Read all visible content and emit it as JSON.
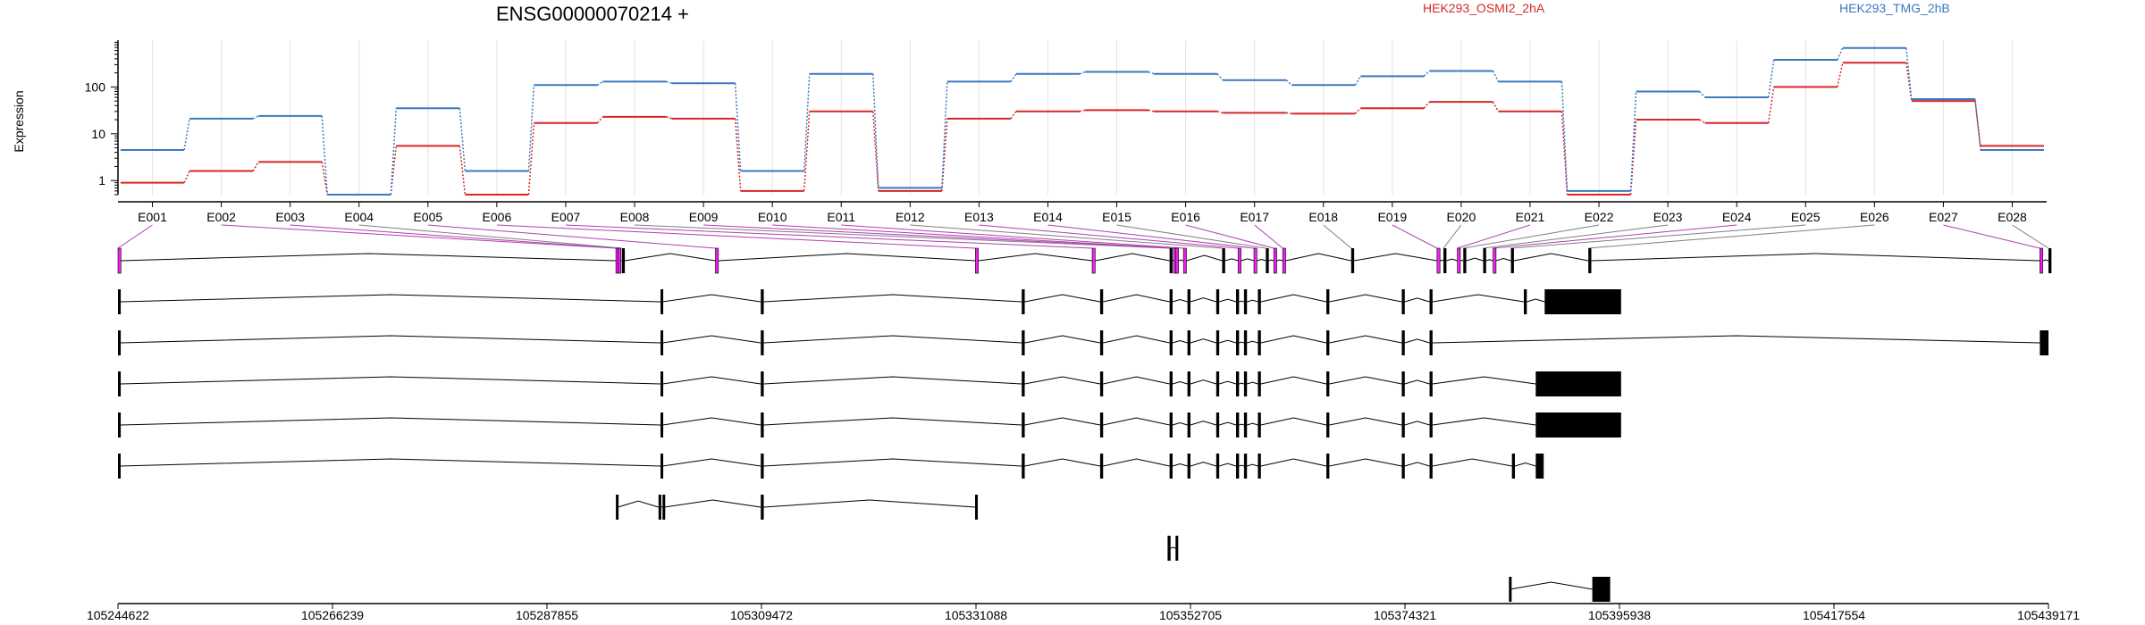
{
  "title": "ENSG00000070214 +",
  "legend": [
    {
      "name": "HEK293_OSMI2_2hA",
      "color": "#d62728"
    },
    {
      "name": "HEK293_TMG_2hB",
      "color": "#3a78c1"
    }
  ],
  "colors": {
    "highlight_exon": "#ee22ee",
    "connector": "#b040b0",
    "connector_plain": "#808080",
    "grid": "#e4e4e4"
  },
  "chart_data": {
    "type": "line",
    "title": "ENSG00000070214 +",
    "xlabel": "",
    "ylabel": "Expression",
    "yscale": "log",
    "ylim": [
      0.5,
      1000
    ],
    "yticks": [
      1,
      10,
      100
    ],
    "ytick_labels": [
      "1",
      "10",
      "100"
    ],
    "grid": true,
    "legend_position": "top-right",
    "categories": [
      "E001",
      "E002",
      "E003",
      "E004",
      "E005",
      "E006",
      "E007",
      "E008",
      "E009",
      "E010",
      "E011",
      "E012",
      "E013",
      "E014",
      "E015",
      "E016",
      "E017",
      "E018",
      "E019",
      "E020",
      "E021",
      "E022",
      "E023",
      "E024",
      "E025",
      "E026",
      "E027",
      "E028"
    ],
    "series": [
      {
        "name": "HEK293_OSMI2_2hA",
        "color": "#d62728",
        "values": [
          0.9,
          1.6,
          2.5,
          0.5,
          5.5,
          0.5,
          17,
          23,
          21,
          0.6,
          30,
          0.6,
          21,
          30,
          32,
          30,
          28,
          27,
          35,
          48,
          30,
          0.5,
          20,
          17,
          100,
          330,
          50,
          5.5
        ]
      },
      {
        "name": "HEK293_TMG_2hB",
        "color": "#3a78c1",
        "values": [
          4.5,
          21,
          24,
          0.5,
          35,
          1.6,
          110,
          130,
          120,
          1.6,
          190,
          0.7,
          130,
          190,
          210,
          190,
          140,
          110,
          170,
          220,
          130,
          0.6,
          80,
          60,
          380,
          680,
          55,
          4.5
        ]
      }
    ]
  },
  "genome": {
    "coord_ticks": [
      "105244622",
      "105266239",
      "105287855",
      "105309472",
      "105331088",
      "105352705",
      "105374321",
      "105395938",
      "105417554",
      "105439171"
    ],
    "coord_range": [
      105244622,
      105439171
    ],
    "exon_positions": [
      105244622,
      105294800,
      105295000,
      105295400,
      105304830,
      105331030,
      105342800,
      105350600,
      105351000,
      105351200,
      105352000,
      105355900,
      105357500,
      105359100,
      105360300,
      105361100,
      105362000,
      105368900,
      105377550,
      105378200,
      105379600,
      105380200,
      105382200,
      105383200,
      105385000,
      105392800,
      105438300,
      105439171
    ],
    "highlight_exons": [
      0,
      1,
      2,
      4,
      5,
      6,
      8,
      9,
      10,
      12,
      13,
      15,
      16,
      18,
      20,
      23,
      26
    ],
    "transcripts": [
      {
        "exons": [
          [
            105244622,
            105244900
          ],
          [
            105299300,
            105299500
          ],
          [
            105309400,
            105309700
          ],
          [
            105335700,
            105336000
          ],
          [
            105343600,
            105343900
          ],
          [
            105350600,
            105350900
          ],
          [
            105352400,
            105352700
          ],
          [
            105355300,
            105355600
          ],
          [
            105357300,
            105357600
          ],
          [
            105358100,
            105358400
          ],
          [
            105359500,
            105359800
          ],
          [
            105366400,
            105366700
          ],
          [
            105374000,
            105374300
          ],
          [
            105376800,
            105377100
          ],
          [
            105386300,
            105386600
          ],
          [
            105388400,
            105396100
          ]
        ]
      },
      {
        "exons": [
          [
            105244622,
            105244900
          ],
          [
            105299300,
            105299500
          ],
          [
            105309400,
            105309700
          ],
          [
            105335700,
            105336000
          ],
          [
            105343600,
            105343900
          ],
          [
            105350600,
            105350900
          ],
          [
            105352400,
            105352700
          ],
          [
            105355300,
            105355600
          ],
          [
            105357300,
            105357600
          ],
          [
            105358100,
            105358400
          ],
          [
            105359500,
            105359800
          ],
          [
            105366400,
            105366700
          ],
          [
            105374000,
            105374300
          ],
          [
            105376800,
            105377100
          ],
          [
            105438300,
            105439171
          ]
        ]
      },
      {
        "exons": [
          [
            105244622,
            105244900
          ],
          [
            105299300,
            105299500
          ],
          [
            105309400,
            105309700
          ],
          [
            105335700,
            105336000
          ],
          [
            105343600,
            105343900
          ],
          [
            105350600,
            105350900
          ],
          [
            105352400,
            105352700
          ],
          [
            105355300,
            105355600
          ],
          [
            105357300,
            105357600
          ],
          [
            105358100,
            105358400
          ],
          [
            105359500,
            105359800
          ],
          [
            105366400,
            105366700
          ],
          [
            105374000,
            105374300
          ],
          [
            105376800,
            105377100
          ],
          [
            105387500,
            105396100
          ]
        ]
      },
      {
        "exons": [
          [
            105244622,
            105244900
          ],
          [
            105299300,
            105299500
          ],
          [
            105309400,
            105309700
          ],
          [
            105335700,
            105336000
          ],
          [
            105343600,
            105343900
          ],
          [
            105350600,
            105350900
          ],
          [
            105352400,
            105352700
          ],
          [
            105355300,
            105355600
          ],
          [
            105357300,
            105357600
          ],
          [
            105358100,
            105358400
          ],
          [
            105359500,
            105359800
          ],
          [
            105366400,
            105366700
          ],
          [
            105374000,
            105374300
          ],
          [
            105376800,
            105377100
          ],
          [
            105387500,
            105396100
          ]
        ]
      },
      {
        "exons": [
          [
            105244622,
            105244800
          ],
          [
            105299300,
            105299500
          ],
          [
            105309400,
            105309700
          ],
          [
            105335700,
            105336000
          ],
          [
            105343600,
            105343900
          ],
          [
            105350600,
            105350900
          ],
          [
            105352400,
            105352700
          ],
          [
            105355300,
            105355600
          ],
          [
            105357300,
            105357600
          ],
          [
            105358100,
            105358400
          ],
          [
            105359500,
            105359800
          ],
          [
            105366400,
            105366700
          ],
          [
            105374000,
            105374300
          ],
          [
            105376800,
            105377100
          ],
          [
            105385100,
            105385400
          ],
          [
            105387500,
            105388300
          ]
        ]
      },
      {
        "exons": [
          [
            105294800,
            105295000
          ],
          [
            105299100,
            105299300
          ],
          [
            105299500,
            105299700
          ],
          [
            105309400,
            105309700
          ],
          [
            105331000,
            105331200
          ]
        ]
      },
      {
        "exons": [
          [
            105350400,
            105350700
          ],
          [
            105351200,
            105351400
          ]
        ]
      },
      {
        "exons": [
          [
            105384800,
            105384900
          ],
          [
            105393200,
            105395000
          ]
        ]
      }
    ]
  }
}
